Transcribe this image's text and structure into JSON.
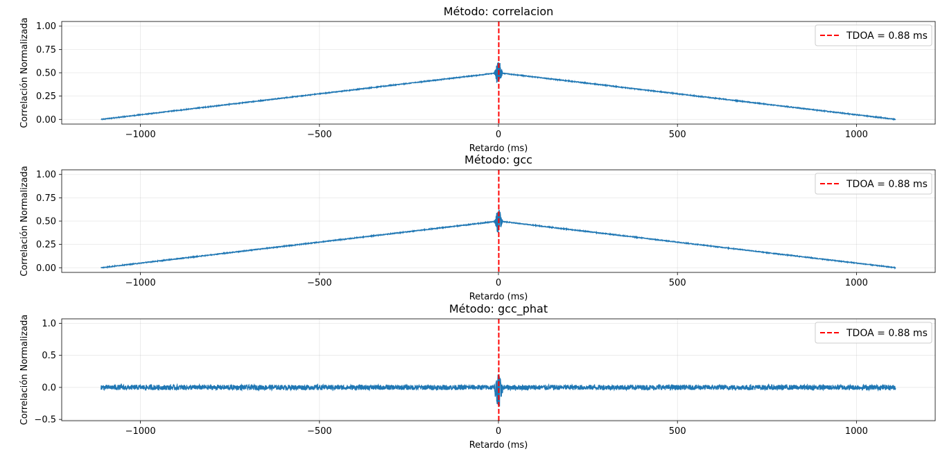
{
  "chart_data": [
    {
      "type": "line",
      "title": "Método: correlacion",
      "xlabel": "Retardo (ms)",
      "ylabel": "Correlación Normalizada",
      "xlim": [
        -1220,
        1220
      ],
      "ylim": [
        -0.05,
        1.05
      ],
      "x_ticks": [
        -1000,
        -500,
        0,
        500,
        1000
      ],
      "x_tick_labels": [
        "−1000",
        "−500",
        "0",
        "500",
        "1000"
      ],
      "y_ticks": [
        0,
        0.25,
        0.5,
        0.75,
        1.0
      ],
      "y_tick_labels": [
        "0.00",
        "0.25",
        "0.50",
        "0.75",
        "1.00"
      ],
      "grid": true,
      "legend_position": "top-right",
      "series": [
        {
          "color": "#1f77b4",
          "shape": "triangle",
          "x_range": [
            -1110,
            1110
          ],
          "start_value": 0.0,
          "peak_value": 0.5,
          "end_value": 0.0,
          "noise": 0.004,
          "center_burst": {
            "width_ms": 12,
            "max": 0.66,
            "min": 0.33
          }
        }
      ],
      "annotations": [
        {
          "type": "vline",
          "x": 0.88,
          "label": "TDOA = 0.88 ms",
          "color": "#ff0000",
          "style": "dashed"
        }
      ]
    },
    {
      "type": "line",
      "title": "Método: gcc",
      "xlabel": "Retardo (ms)",
      "ylabel": "Correlación Normalizada",
      "xlim": [
        -1220,
        1220
      ],
      "ylim": [
        -0.05,
        1.05
      ],
      "x_ticks": [
        -1000,
        -500,
        0,
        500,
        1000
      ],
      "x_tick_labels": [
        "−1000",
        "−500",
        "0",
        "500",
        "1000"
      ],
      "y_ticks": [
        0,
        0.25,
        0.5,
        0.75,
        1.0
      ],
      "y_tick_labels": [
        "0.00",
        "0.25",
        "0.50",
        "0.75",
        "1.00"
      ],
      "grid": true,
      "legend_position": "top-right",
      "series": [
        {
          "color": "#1f77b4",
          "shape": "triangle",
          "x_range": [
            -1110,
            1110
          ],
          "start_value": 0.0,
          "peak_value": 0.5,
          "end_value": 0.0,
          "noise": 0.004,
          "center_burst": {
            "width_ms": 12,
            "max": 0.66,
            "min": 0.33
          }
        }
      ],
      "annotations": [
        {
          "type": "vline",
          "x": 0.88,
          "label": "TDOA = 0.88 ms",
          "color": "#ff0000",
          "style": "dashed"
        }
      ]
    },
    {
      "type": "line",
      "title": "Método: gcc_phat",
      "xlabel": "Retardo (ms)",
      "ylabel": "Correlación Normalizada",
      "xlim": [
        -1220,
        1220
      ],
      "ylim": [
        -0.52,
        1.07
      ],
      "x_ticks": [
        -1000,
        -500,
        0,
        500,
        1000
      ],
      "x_tick_labels": [
        "−1000",
        "−500",
        "0",
        "500",
        "1000"
      ],
      "y_ticks": [
        -0.5,
        0.0,
        0.5,
        1.0
      ],
      "y_tick_labels": [
        "−0.5",
        "0.0",
        "0.5",
        "1.0"
      ],
      "grid": true,
      "legend_position": "top-right",
      "series": [
        {
          "color": "#1f77b4",
          "shape": "noise",
          "x_range": [
            -1110,
            1110
          ],
          "noise": 0.04,
          "center_burst": {
            "width_ms": 14,
            "max": 0.22,
            "min": -0.42
          }
        }
      ],
      "annotations": [
        {
          "type": "vline",
          "x": 0.88,
          "label": "TDOA = 0.88 ms",
          "color": "#ff0000",
          "style": "dashed"
        }
      ]
    }
  ]
}
